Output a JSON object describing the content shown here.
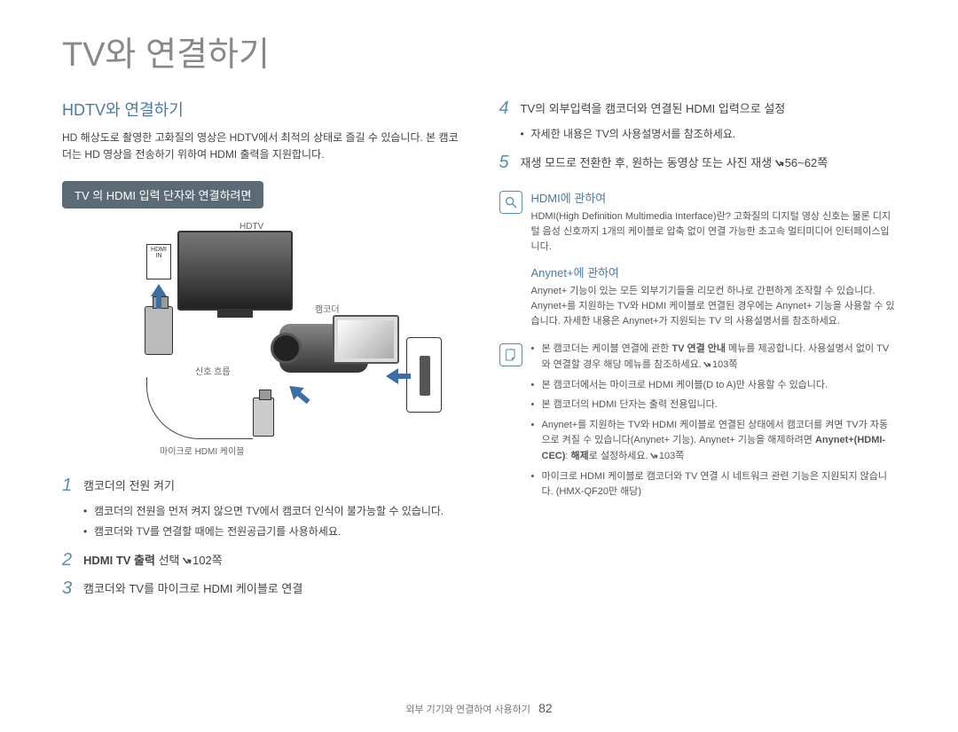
{
  "page": {
    "title": "TV와 연결하기",
    "section_heading": "HDTV와 연결하기",
    "intro": "HD 해상도로 촬영한 고화질의 영상은 HDTV에서 최적의 상태로 즐길 수 있습니다. 본 캠코더는 HD 영상을 전송하기 위하여 HDMI 출력을 지원합니다.",
    "pill": "TV 의 HDMI 입력 단자와 연결하려면"
  },
  "diagram": {
    "hdtv_label": "HDTV",
    "hdmi_in": "HDMI IN",
    "camcorder": "캠코더",
    "flow": "신호 흐름",
    "cable": "마이크로 HDMI 케이블",
    "arrow_color": "#3b6ea5"
  },
  "steps": [
    {
      "n": "1",
      "text": "캠코더의 전원 켜기",
      "bullets": [
        "캠코더의 전원을 먼저 켜지 않으면 TV에서 캠코더 인식이 불가능할 수 있습니다.",
        "캠코더와 TV를 연결할 때에는 전원공급기를 사용하세요."
      ]
    },
    {
      "n": "2",
      "html": "<strong>HDMI TV 출력</strong> 선택 <span class='ref-arrow'>↲</span>102쪽"
    },
    {
      "n": "3",
      "text": "캠코더와 TV를 마이크로 HDMI 케이블로 연결"
    },
    {
      "n": "4",
      "text": "TV의 외부입력을 캠코더와 연결된 HDMI 입력으로 설정",
      "bullets": [
        "자세한 내용은 TV의 사용설명서를 참조하세요."
      ]
    },
    {
      "n": "5",
      "html": "재생 모드로 전환한 후, 원하는 동영상 또는 사진 재생 <span class='ref-arrow'>↲</span>56~62쪽"
    }
  ],
  "info_magnify": {
    "h1": "HDMI에 관하여",
    "p1": "HDMI(High Definition Multimedia Interface)란? 고화질의 디지털 영상 신호는 물론 디지털 음성 신호까지 1개의 케이블로 압축 없이 연결 가능한 초고속 멀티미디어 인터페이스입니다.",
    "h2": "Anynet+에 관하여",
    "p2": "Anynet+ 기능이 있는 모든 외부기기들을 리모컨 하나로 간편하게 조작할 수 있습니다. Anynet+를 지원하는 TV와 HDMI 케이블로 연결된 경우에는 Anynet+ 기능을 사용할 수 있습니다. 자세한 내용은 Anynet+가 지원되는 TV 의 사용설명서를 참조하세요."
  },
  "info_note": {
    "items": [
      "본 캠코더는 케이블 연결에 관한 <strong>TV 연결 안내</strong> 메뉴를 제공합니다. 사용설명서 없이 TV와 연결할 경우 해당 메뉴를 참조하세요. <span class='ref-arrow'>↲</span>103쪽",
      "본 캠코더에서는 마이크로 HDMI 케이블(D to A)만 사용할 수 있습니다.",
      "본 캠코더의 HDMI 단자는 출력 전용입니다.",
      "Anynet+를 지원하는 TV와 HDMI 케이블로 연결된 상태에서 캠코더를 켜면 TV가 자동으로 켜질 수 있습니다(Anynet+ 기능). Anynet+ 기능을 해제하려면 <strong>Anynet+(HDMI-CEC)</strong>: <strong>해제</strong>로 설정하세요. <span class='ref-arrow'>↲</span>103쪽",
      "마이크로 HDMI 케이블로 캠코더와 TV 연결 시 네트워크 관련 기능은 지원되지 않습니다. (HMX-QF20만 해당)"
    ]
  },
  "footer": {
    "text": "외부 기기와 연결하여 사용하기",
    "page": "82"
  },
  "colors": {
    "accent": "#4a7ba6",
    "arrow": "#3b6ea5",
    "pill": "#5a6b75"
  }
}
